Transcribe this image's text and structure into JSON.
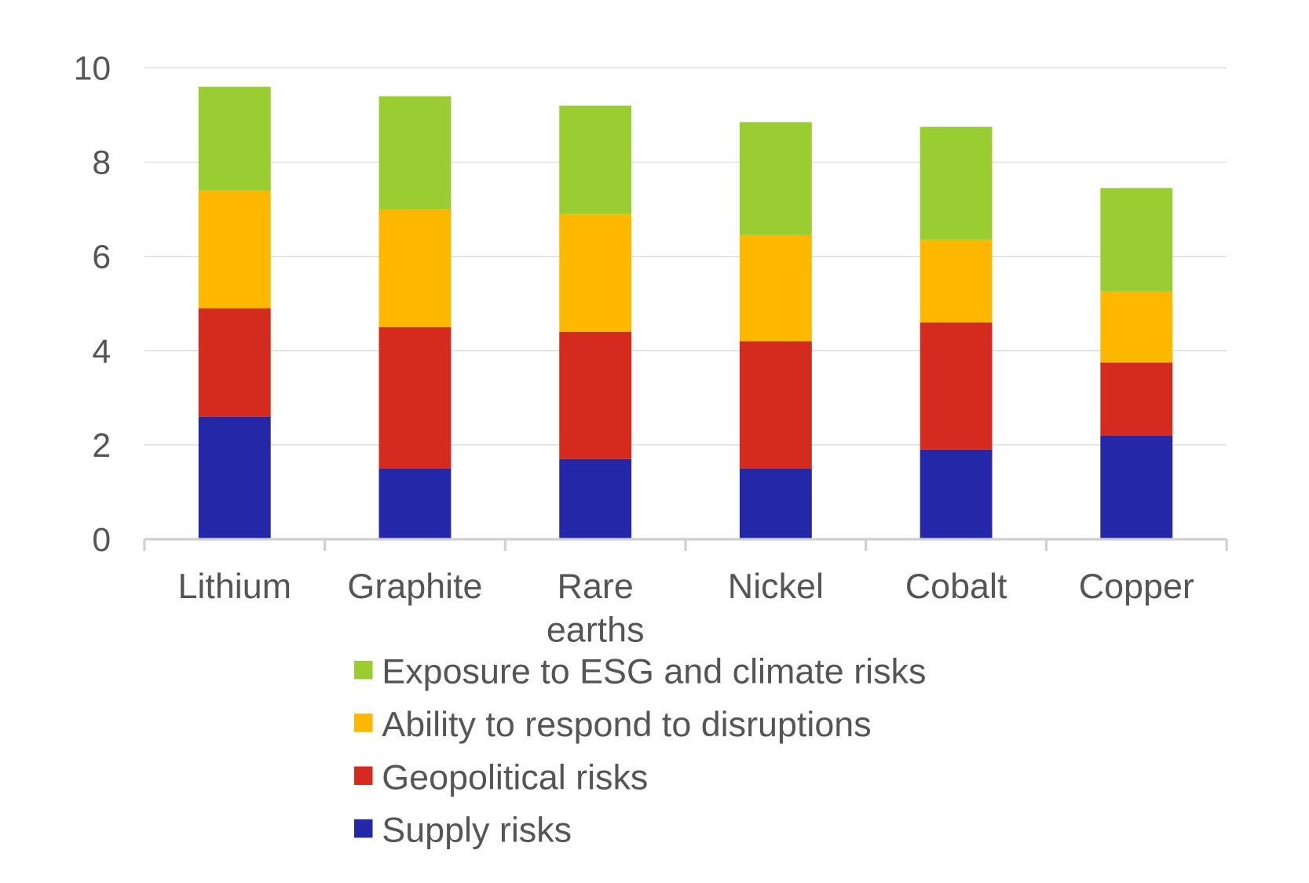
{
  "chart_data": {
    "type": "bar",
    "stacked": true,
    "title": "",
    "xlabel": "",
    "ylabel": "",
    "ylim": [
      0,
      10
    ],
    "yticks": [
      0,
      2,
      4,
      6,
      8,
      10
    ],
    "grid": true,
    "legend_position": "bottom",
    "categories": [
      "Lithium",
      "Graphite",
      "Rare earths",
      "Nickel",
      "Cobalt",
      "Copper"
    ],
    "category_lines": [
      [
        "Lithium"
      ],
      [
        "Graphite"
      ],
      [
        "Rare",
        "earths"
      ],
      [
        "Nickel"
      ],
      [
        "Cobalt"
      ],
      [
        "Copper"
      ]
    ],
    "series": [
      {
        "name": "Supply risks",
        "color": "#2427A8",
        "values": [
          2.6,
          1.5,
          1.7,
          1.5,
          1.9,
          2.2
        ]
      },
      {
        "name": "Geopolitical risks",
        "color": "#D52B1E",
        "values": [
          2.3,
          3.0,
          2.7,
          2.7,
          2.7,
          1.55
        ]
      },
      {
        "name": "Ability to respond to disruptions",
        "color": "#FFB800",
        "values": [
          2.5,
          2.5,
          2.5,
          2.25,
          1.75,
          1.5
        ]
      },
      {
        "name": "Exposure to ESG and climate risks",
        "color": "#9ACD32",
        "values": [
          2.2,
          2.4,
          2.3,
          2.4,
          2.4,
          2.2
        ]
      }
    ]
  }
}
